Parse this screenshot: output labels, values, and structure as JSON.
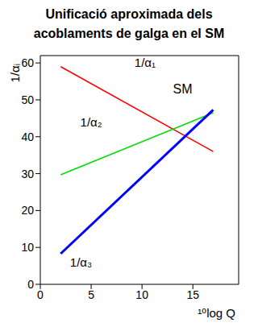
{
  "chart_data": {
    "type": "line",
    "title": "Unificació aproximada dels acoblaments de galga en el SM",
    "x_label": "¹⁰log Q",
    "y_label": "1/αᵢ",
    "x": [
      2,
      17
    ],
    "series": [
      {
        "name": "1/α₁",
        "color": "#ff0000",
        "values": [
          59,
          36
        ]
      },
      {
        "name": "1/α₂",
        "color": "#00dd00",
        "values": [
          29.7,
          46.5
        ]
      },
      {
        "name": "1/α₃",
        "color": "#0000ff",
        "values": [
          8.3,
          47.3
        ]
      }
    ],
    "annotations": [
      "SM"
    ],
    "xlim": [
      0,
      19.5
    ],
    "ylim": [
      0,
      62
    ],
    "xticks": [
      0,
      5,
      10,
      15
    ],
    "yticks": [
      0,
      10,
      20,
      30,
      40,
      50,
      60
    ],
    "grid": false
  }
}
